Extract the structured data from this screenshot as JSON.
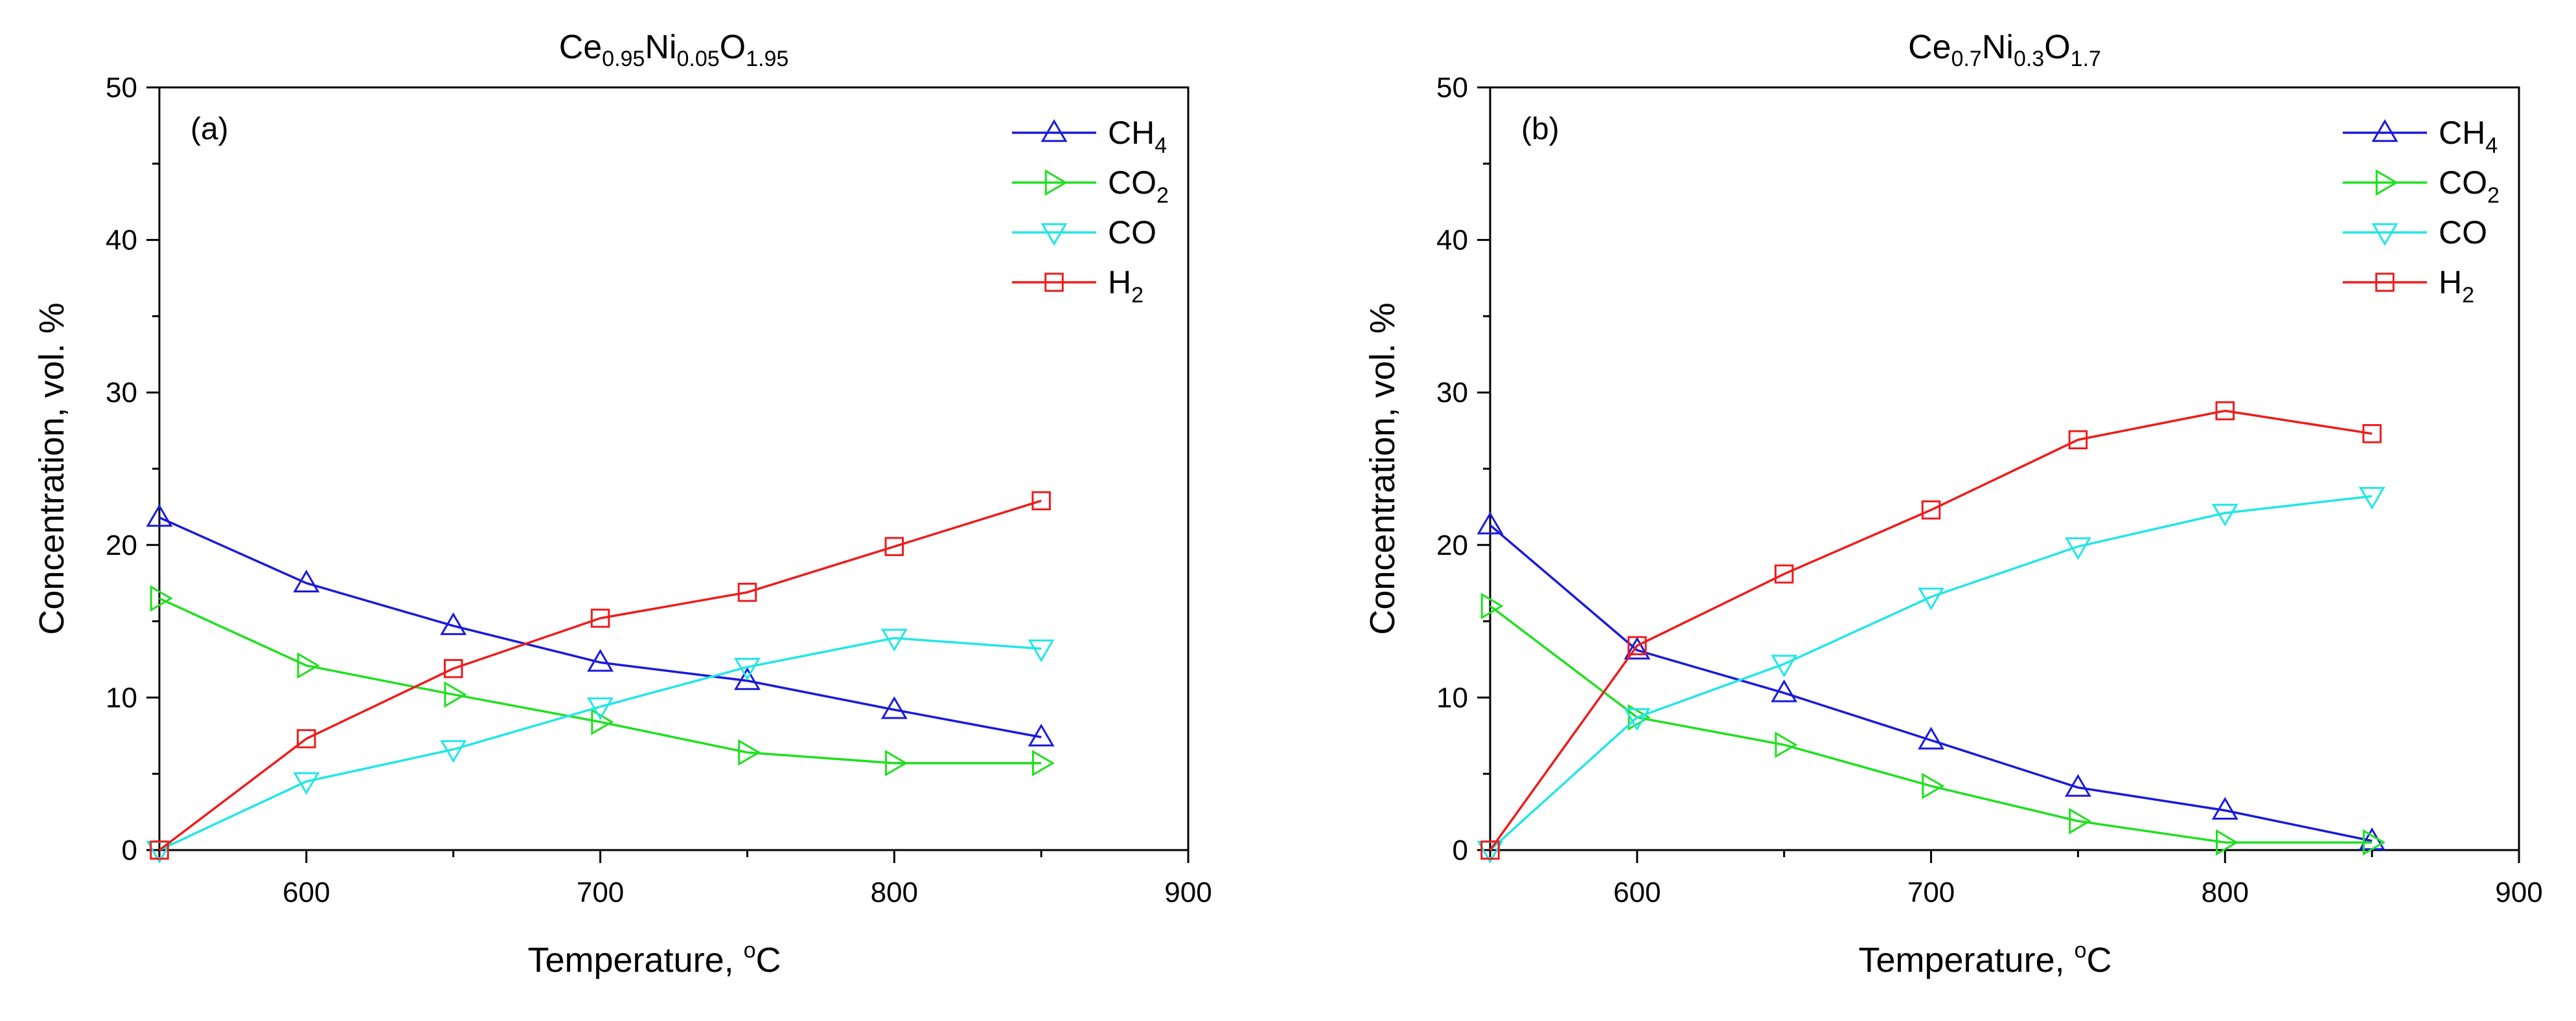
{
  "figure": {
    "background": "#ffffff"
  },
  "series_styles": [
    {
      "name": "CH4",
      "color": "#1a1adc",
      "marker": "triangle-up",
      "icon": "triangle-up-icon"
    },
    {
      "name": "CO2",
      "color": "#1fe01f",
      "marker": "triangle-right",
      "icon": "triangle-right-icon"
    },
    {
      "name": "CO",
      "color": "#22e6e6",
      "marker": "triangle-down",
      "icon": "triangle-down-icon"
    },
    {
      "name": "H2",
      "color": "#ee1c1c",
      "marker": "square",
      "icon": "square-icon"
    }
  ],
  "chart_data": [
    {
      "type": "line",
      "panel_label": "(a)",
      "title": {
        "parts": [
          "Ce",
          "0.95",
          "Ni",
          "0.05",
          "O",
          "1.95"
        ]
      },
      "xlabel": "Temperature, ",
      "xlabel_sup": "o",
      "xlabel_unit": "C",
      "ylabel": "Concentration, vol. %",
      "xlim": [
        550,
        900
      ],
      "ylim": [
        0,
        50
      ],
      "xticks": [
        "600",
        "700",
        "800",
        "900"
      ],
      "yticks": [
        "0",
        "10",
        "20",
        "30",
        "40",
        "50"
      ],
      "x": [
        550,
        600,
        650,
        700,
        750,
        800,
        850
      ],
      "legend_position": "top-right",
      "legend": [
        {
          "base": "CH",
          "sub": "4"
        },
        {
          "base": "CO",
          "sub": "2"
        },
        {
          "base": "CO",
          "sub": ""
        },
        {
          "base": "H",
          "sub": "2"
        }
      ],
      "series": [
        {
          "name": "CH4",
          "values": [
            21.8,
            17.5,
            14.7,
            12.3,
            11.1,
            9.2,
            7.4
          ]
        },
        {
          "name": "CO2",
          "values": [
            16.5,
            12.1,
            10.2,
            8.4,
            6.4,
            5.7,
            5.7
          ]
        },
        {
          "name": "CO",
          "values": [
            0.0,
            4.5,
            6.6,
            9.4,
            12.0,
            13.9,
            13.2
          ]
        },
        {
          "name": "H2",
          "values": [
            0.0,
            7.3,
            11.9,
            15.2,
            16.9,
            19.9,
            22.9
          ]
        }
      ]
    },
    {
      "type": "line",
      "panel_label": "(b)",
      "title": {
        "parts": [
          "Ce",
          "0.7",
          "Ni",
          "0.3",
          "O",
          "1.7"
        ]
      },
      "xlabel": "Temperature, ",
      "xlabel_sup": "o",
      "xlabel_unit": "C",
      "ylabel": "Concentration, vol. %",
      "xlim": [
        550,
        900
      ],
      "ylim": [
        0,
        50
      ],
      "xticks": [
        "600",
        "700",
        "800",
        "900"
      ],
      "yticks": [
        "0",
        "10",
        "20",
        "30",
        "40",
        "50"
      ],
      "x": [
        550,
        600,
        650,
        700,
        750,
        800,
        850
      ],
      "legend_position": "top-right",
      "legend": [
        {
          "base": "CH",
          "sub": "4"
        },
        {
          "base": "CO",
          "sub": "2"
        },
        {
          "base": "CO",
          "sub": ""
        },
        {
          "base": "H",
          "sub": "2"
        }
      ],
      "series": [
        {
          "name": "CH4",
          "values": [
            21.3,
            13.1,
            10.3,
            7.2,
            4.1,
            2.6,
            0.6
          ]
        },
        {
          "name": "CO2",
          "values": [
            16.0,
            8.7,
            6.9,
            4.2,
            1.9,
            0.5,
            0.5
          ]
        },
        {
          "name": "CO",
          "values": [
            0.0,
            8.7,
            12.2,
            16.6,
            19.9,
            22.1,
            23.2
          ]
        },
        {
          "name": "H2",
          "values": [
            0.0,
            13.4,
            18.1,
            22.3,
            26.9,
            28.8,
            27.3
          ]
        }
      ]
    }
  ]
}
